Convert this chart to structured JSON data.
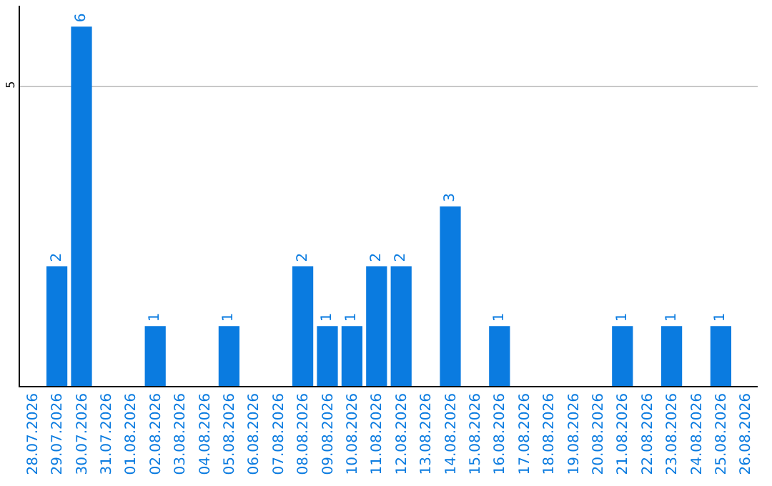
{
  "chart_data": {
    "type": "bar",
    "categories": [
      "28.07.2026",
      "29.07.2026",
      "30.07.2026",
      "31.07.2026",
      "01.08.2026",
      "02.08.2026",
      "03.08.2026",
      "04.08.2026",
      "05.08.2026",
      "06.08.2026",
      "07.08.2026",
      "08.08.2026",
      "09.08.2026",
      "10.08.2026",
      "11.08.2026",
      "12.08.2026",
      "13.08.2026",
      "14.08.2026",
      "15.08.2026",
      "16.08.2026",
      "17.08.2026",
      "18.08.2026",
      "19.08.2026",
      "20.08.2026",
      "21.08.2026",
      "22.08.2026",
      "23.08.2026",
      "24.08.2026",
      "25.08.2026",
      "26.08.2026"
    ],
    "values": [
      0,
      2,
      6,
      0,
      0,
      1,
      0,
      0,
      1,
      0,
      0,
      2,
      1,
      1,
      2,
      2,
      0,
      3,
      0,
      1,
      0,
      0,
      0,
      0,
      1,
      0,
      1,
      0,
      1,
      0
    ],
    "value_labels": [
      null,
      "2",
      "6",
      null,
      null,
      "1",
      null,
      null,
      "1",
      null,
      null,
      "2",
      "1",
      "1",
      "2",
      "2",
      null,
      "3",
      null,
      "1",
      null,
      null,
      null,
      null,
      "1",
      null,
      "1",
      null,
      "1",
      null
    ],
    "color": "#0a7be0",
    "ylim": [
      0,
      6.35
    ],
    "yticks": [
      5
    ],
    "grid": "y",
    "legend": false
  }
}
